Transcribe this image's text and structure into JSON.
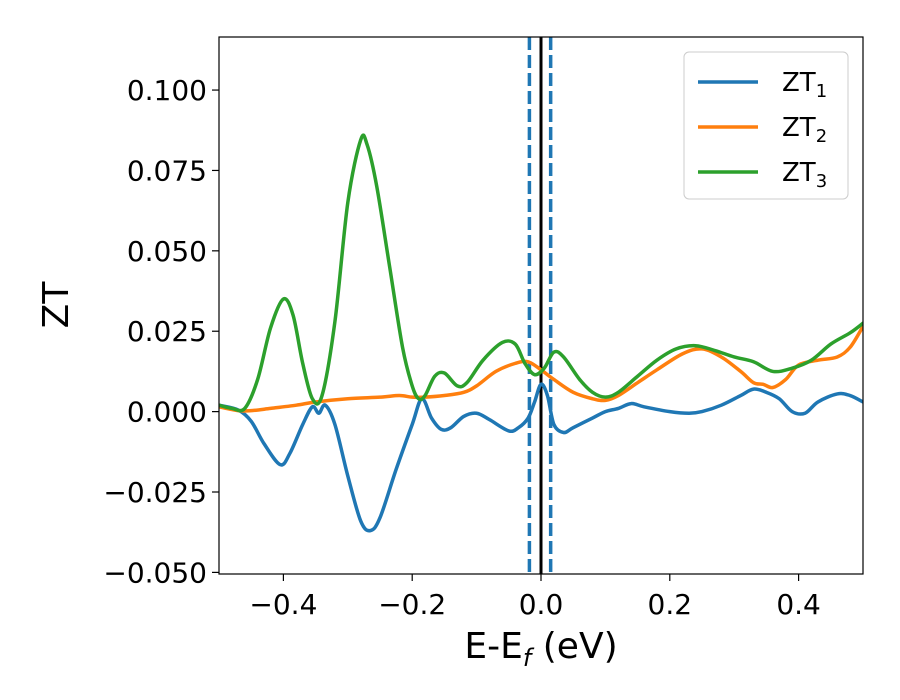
{
  "chart_data": {
    "type": "line",
    "title": "",
    "xlabel": {
      "base": "E-E",
      "sub": "f",
      "suffix": " (eV)"
    },
    "ylabel": "ZT",
    "xlim": [
      -0.5,
      0.5
    ],
    "ylim": [
      -0.0505,
      0.1165
    ],
    "xticks": [
      {
        "value": -0.4,
        "label": "−0.4"
      },
      {
        "value": -0.2,
        "label": "−0.2"
      },
      {
        "value": 0.0,
        "label": "0.0"
      },
      {
        "value": 0.2,
        "label": "0.2"
      },
      {
        "value": 0.4,
        "label": "0.4"
      }
    ],
    "yticks": [
      {
        "value": -0.05,
        "label": "−0.050"
      },
      {
        "value": -0.025,
        "label": "−0.025"
      },
      {
        "value": 0.0,
        "label": "0.000"
      },
      {
        "value": 0.025,
        "label": "0.025"
      },
      {
        "value": 0.05,
        "label": "0.050"
      },
      {
        "value": 0.075,
        "label": "0.075"
      },
      {
        "value": 0.1,
        "label": "0.100"
      }
    ],
    "grid": false,
    "legend_position": "top-right",
    "vertical_lines": [
      {
        "x": -0.018,
        "style": "dashed",
        "color": "#1f77b4"
      },
      {
        "x": 0.0,
        "style": "solid",
        "color": "#000000"
      },
      {
        "x": 0.015,
        "style": "dashed",
        "color": "#1f77b4"
      }
    ],
    "series": [
      {
        "name": "ZT",
        "sub": "1",
        "color": "#1f77b4",
        "points": [
          [
            -0.5,
            0.002
          ],
          [
            -0.47,
            0.0005
          ],
          [
            -0.45,
            -0.003
          ],
          [
            -0.43,
            -0.01
          ],
          [
            -0.405,
            -0.0165
          ],
          [
            -0.39,
            -0.013
          ],
          [
            -0.37,
            -0.004
          ],
          [
            -0.355,
            0.0015
          ],
          [
            -0.345,
            -0.0005
          ],
          [
            -0.335,
            0.002
          ],
          [
            -0.32,
            -0.004
          ],
          [
            -0.3,
            -0.02
          ],
          [
            -0.28,
            -0.034
          ],
          [
            -0.265,
            -0.037
          ],
          [
            -0.25,
            -0.033
          ],
          [
            -0.225,
            -0.018
          ],
          [
            -0.2,
            -0.004
          ],
          [
            -0.185,
            0.004
          ],
          [
            -0.17,
            -0.002
          ],
          [
            -0.155,
            -0.0055
          ],
          [
            -0.14,
            -0.005
          ],
          [
            -0.12,
            -0.0015
          ],
          [
            -0.1,
            -0.0005
          ],
          [
            -0.08,
            -0.0025
          ],
          [
            -0.05,
            -0.006
          ],
          [
            -0.035,
            -0.005
          ],
          [
            -0.02,
            -0.002
          ],
          [
            -0.01,
            0.003
          ],
          [
            0.0,
            0.0085
          ],
          [
            0.01,
            0.005
          ],
          [
            0.02,
            -0.004
          ],
          [
            0.035,
            -0.0065
          ],
          [
            0.05,
            -0.005
          ],
          [
            0.08,
            -0.002
          ],
          [
            0.1,
            0.0
          ],
          [
            0.12,
            0.001
          ],
          [
            0.14,
            0.0025
          ],
          [
            0.16,
            0.0015
          ],
          [
            0.2,
            0.0
          ],
          [
            0.23,
            -0.0005
          ],
          [
            0.25,
            0.0
          ],
          [
            0.28,
            0.002
          ],
          [
            0.31,
            0.005
          ],
          [
            0.33,
            0.007
          ],
          [
            0.35,
            0.006
          ],
          [
            0.37,
            0.004
          ],
          [
            0.39,
            0.0
          ],
          [
            0.41,
            -0.0005
          ],
          [
            0.43,
            0.003
          ],
          [
            0.46,
            0.0055
          ],
          [
            0.48,
            0.005
          ],
          [
            0.5,
            0.003
          ]
        ]
      },
      {
        "name": "ZT",
        "sub": "2",
        "color": "#ff7f0e",
        "points": [
          [
            -0.5,
            0.0015
          ],
          [
            -0.47,
            0.0003
          ],
          [
            -0.45,
            0.0003
          ],
          [
            -0.42,
            0.001
          ],
          [
            -0.38,
            0.002
          ],
          [
            -0.35,
            0.003
          ],
          [
            -0.3,
            0.004
          ],
          [
            -0.25,
            0.0045
          ],
          [
            -0.22,
            0.005
          ],
          [
            -0.2,
            0.0045
          ],
          [
            -0.18,
            0.0045
          ],
          [
            -0.15,
            0.005
          ],
          [
            -0.12,
            0.006
          ],
          [
            -0.1,
            0.008
          ],
          [
            -0.07,
            0.0125
          ],
          [
            -0.04,
            0.015
          ],
          [
            -0.02,
            0.0155
          ],
          [
            0.0,
            0.013
          ],
          [
            0.02,
            0.01
          ],
          [
            0.05,
            0.006
          ],
          [
            0.08,
            0.004
          ],
          [
            0.1,
            0.0035
          ],
          [
            0.12,
            0.005
          ],
          [
            0.15,
            0.009
          ],
          [
            0.18,
            0.013
          ],
          [
            0.22,
            0.018
          ],
          [
            0.25,
            0.0195
          ],
          [
            0.28,
            0.017
          ],
          [
            0.31,
            0.0125
          ],
          [
            0.33,
            0.009
          ],
          [
            0.345,
            0.0085
          ],
          [
            0.36,
            0.0075
          ],
          [
            0.38,
            0.01
          ],
          [
            0.4,
            0.0145
          ],
          [
            0.43,
            0.016
          ],
          [
            0.46,
            0.017
          ],
          [
            0.48,
            0.02
          ],
          [
            0.5,
            0.0265
          ]
        ]
      },
      {
        "name": "ZT",
        "sub": "3",
        "color": "#2ca02c",
        "points": [
          [
            -0.5,
            0.002
          ],
          [
            -0.48,
            0.001
          ],
          [
            -0.46,
            0.001
          ],
          [
            -0.44,
            0.01
          ],
          [
            -0.42,
            0.026
          ],
          [
            -0.4,
            0.035
          ],
          [
            -0.385,
            0.03
          ],
          [
            -0.37,
            0.015
          ],
          [
            -0.355,
            0.004
          ],
          [
            -0.34,
            0.005
          ],
          [
            -0.32,
            0.028
          ],
          [
            -0.3,
            0.065
          ],
          [
            -0.28,
            0.0845
          ],
          [
            -0.27,
            0.083
          ],
          [
            -0.255,
            0.07
          ],
          [
            -0.235,
            0.045
          ],
          [
            -0.215,
            0.02
          ],
          [
            -0.2,
            0.008
          ],
          [
            -0.19,
            0.004
          ],
          [
            -0.18,
            0.005
          ],
          [
            -0.165,
            0.011
          ],
          [
            -0.15,
            0.012
          ],
          [
            -0.13,
            0.008
          ],
          [
            -0.115,
            0.009
          ],
          [
            -0.09,
            0.016
          ],
          [
            -0.06,
            0.0215
          ],
          [
            -0.04,
            0.021
          ],
          [
            -0.025,
            0.015
          ],
          [
            -0.01,
            0.0115
          ],
          [
            0.005,
            0.0135
          ],
          [
            0.02,
            0.0185
          ],
          [
            0.035,
            0.017
          ],
          [
            0.06,
            0.01
          ],
          [
            0.08,
            0.006
          ],
          [
            0.1,
            0.0045
          ],
          [
            0.12,
            0.006
          ],
          [
            0.15,
            0.011
          ],
          [
            0.18,
            0.016
          ],
          [
            0.21,
            0.0195
          ],
          [
            0.24,
            0.0205
          ],
          [
            0.27,
            0.019
          ],
          [
            0.3,
            0.017
          ],
          [
            0.33,
            0.0155
          ],
          [
            0.36,
            0.0125
          ],
          [
            0.39,
            0.0135
          ],
          [
            0.42,
            0.016
          ],
          [
            0.45,
            0.021
          ],
          [
            0.48,
            0.0245
          ],
          [
            0.5,
            0.0275
          ]
        ]
      }
    ]
  }
}
